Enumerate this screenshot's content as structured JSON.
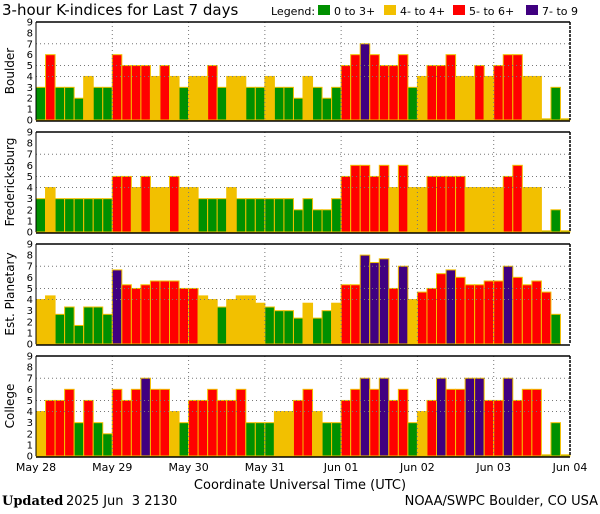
{
  "chart_data": {
    "type": "bar",
    "title": "3-hour K-indices for Last 7 days",
    "legend_label": "Legend:",
    "legend": [
      {
        "label": "0 to 3+",
        "color": "#009000"
      },
      {
        "label": "4- to 4+",
        "color": "#f2c000"
      },
      {
        "label": "5- to 6+",
        "color": "#ff0000"
      },
      {
        "label": "7- to 9",
        "color": "#400080"
      }
    ],
    "xlabel": "Coordinate Universal Time (UTC)",
    "x_ticks": [
      "May 28",
      "May 29",
      "May 30",
      "May 31",
      "Jun 01",
      "Jun 02",
      "Jun 03",
      "Jun 04"
    ],
    "y_ticks": [
      "0",
      "1",
      "2",
      "3",
      "4",
      "5",
      "6",
      "7",
      "8",
      "9"
    ],
    "ylim": [
      0,
      9
    ],
    "bars_per_day": 8,
    "panels": [
      {
        "name": "Boulder",
        "values": [
          3,
          6,
          3,
          3,
          2,
          4,
          3,
          3,
          6,
          5,
          5,
          5,
          4,
          5,
          4,
          3,
          4,
          4,
          5,
          3,
          4,
          4,
          3,
          3,
          4,
          3,
          3,
          2,
          4,
          3,
          2,
          3,
          5,
          6,
          7,
          6,
          5,
          5,
          6,
          3,
          4,
          5,
          5,
          6,
          4,
          4,
          5,
          4,
          5,
          6,
          6,
          4,
          4,
          0,
          3,
          0
        ]
      },
      {
        "name": "Fredericksburg",
        "values": [
          3,
          4,
          3,
          3,
          3,
          3,
          3,
          3,
          5,
          5,
          4,
          5,
          4,
          4,
          5,
          4,
          4,
          3,
          3,
          3,
          4,
          3,
          3,
          3,
          3,
          3,
          3,
          2,
          3,
          2,
          2,
          3,
          5,
          6,
          6,
          5,
          6,
          4,
          6,
          4,
          4,
          5,
          5,
          5,
          5,
          4,
          4,
          4,
          4,
          5,
          6,
          4,
          4,
          0,
          2,
          0
        ]
      },
      {
        "name": "Est. Planetary",
        "values": [
          4,
          4.33,
          2.67,
          3.33,
          1.67,
          3.33,
          3.33,
          2.67,
          6.67,
          5.33,
          5,
          5.33,
          5.67,
          5.67,
          5.67,
          5,
          5,
          4.33,
          4,
          3.33,
          4,
          4.33,
          4.33,
          3.67,
          3.33,
          3,
          3,
          2.33,
          3.67,
          2.33,
          3,
          3.67,
          5.33,
          5.33,
          8,
          7.33,
          7.67,
          5,
          7,
          4,
          4.67,
          5,
          6.33,
          6.67,
          6,
          5.33,
          5.33,
          5.67,
          5.67,
          7,
          6,
          5.33,
          5.67,
          4.67,
          2.67,
          null
        ]
      },
      {
        "name": "College",
        "values": [
          4,
          5,
          5,
          6,
          3,
          5,
          3,
          2,
          6,
          5,
          6,
          7,
          6,
          6,
          4,
          3,
          5,
          5,
          6,
          5,
          5,
          6,
          3,
          3,
          3,
          4,
          4,
          5,
          6,
          4,
          3,
          3,
          5,
          6,
          7,
          6,
          7,
          5,
          6,
          3,
          4,
          5,
          7,
          6,
          6,
          7,
          7,
          5,
          5,
          7,
          5,
          6,
          6,
          0,
          3,
          0
        ]
      }
    ]
  },
  "footer": {
    "updated_label": "Updated",
    "updated_value": "2025 Jun  3 2130",
    "credit": "NOAA/SWPC Boulder, CO USA"
  }
}
